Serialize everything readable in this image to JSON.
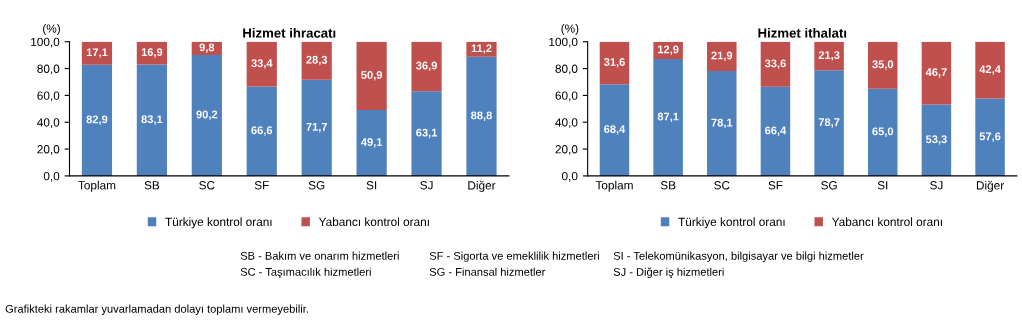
{
  "chart_data": [
    {
      "type": "bar",
      "title": "Hizmet ihracatı",
      "ylabel": "(%)",
      "stacked": true,
      "categories": [
        "Toplam",
        "SB",
        "SC",
        "SF",
        "SG",
        "SI",
        "SJ",
        "Diğer"
      ],
      "series": [
        {
          "name": "Türkiye kontrol oranı",
          "color": "#4f81bd",
          "values": [
            82.9,
            83.1,
            90.2,
            66.6,
            71.7,
            49.1,
            63.1,
            88.8
          ],
          "value_labels": [
            "82,9",
            "83,1",
            "90,2",
            "66,6",
            "71,7",
            "49,1",
            "63,1",
            "88,8"
          ]
        },
        {
          "name": "Yabancı kontrol oranı",
          "color": "#c0504d",
          "values": [
            17.1,
            16.9,
            9.8,
            33.4,
            28.3,
            50.9,
            36.9,
            11.2
          ],
          "value_labels": [
            "17,1",
            "16,9",
            "9,8",
            "33,4",
            "28,3",
            "50,9",
            "36,9",
            "11,2"
          ]
        }
      ],
      "ylim": [
        0,
        100
      ],
      "yticks": [
        {
          "value": 0,
          "label": "0,0"
        },
        {
          "value": 20,
          "label": "20,0"
        },
        {
          "value": 40,
          "label": "40,0"
        },
        {
          "value": 60,
          "label": "60,0"
        },
        {
          "value": 80,
          "label": "80,0"
        },
        {
          "value": 100,
          "label": "100,0"
        }
      ],
      "grid": false,
      "legend": "bottom",
      "annotations": [
        "SB - Bakım ve onarım hizmetleri",
        "SF - Sigorta ve emeklilik hizmetleri",
        "SI - Telekomünikasyon, bilgisayar ve bilgi hizmetler",
        "SC - Taşımacılık hizmetleri",
        "SG - Finansal hizmetler",
        "SJ - Diğer iş hizmetleri",
        "Grafikteki rakamlar yuvarlamadan dolayı toplamı vermeyebilir."
      ]
    },
    {
      "type": "bar",
      "title": "Hizmet ithalatı",
      "ylabel": "(%)",
      "stacked": true,
      "categories": [
        "Toplam",
        "SB",
        "SC",
        "SF",
        "SG",
        "SI",
        "SJ",
        "Diğer"
      ],
      "series": [
        {
          "name": "Türkiye kontrol oranı",
          "color": "#4f81bd",
          "values": [
            68.4,
            87.1,
            78.1,
            66.4,
            78.7,
            65.0,
            53.3,
            57.6
          ],
          "value_labels": [
            "68,4",
            "87,1",
            "78,1",
            "66,4",
            "78,7",
            "65,0",
            "53,3",
            "57,6"
          ]
        },
        {
          "name": "Yabancı kontrol oranı",
          "color": "#c0504d",
          "values": [
            31.6,
            12.9,
            21.9,
            33.6,
            21.3,
            35.0,
            46.7,
            42.4
          ],
          "value_labels": [
            "31,6",
            "12,9",
            "21,9",
            "33,6",
            "21,3",
            "35,0",
            "46,7",
            "42,4"
          ]
        }
      ],
      "ylim": [
        0,
        100
      ],
      "yticks": [
        {
          "value": 0,
          "label": "0,0"
        },
        {
          "value": 20,
          "label": "20,0"
        },
        {
          "value": 40,
          "label": "40,0"
        },
        {
          "value": 60,
          "label": "60,0"
        },
        {
          "value": 80,
          "label": "80,0"
        },
        {
          "value": 100,
          "label": "100,0"
        }
      ],
      "grid": false,
      "legend": "bottom"
    }
  ]
}
